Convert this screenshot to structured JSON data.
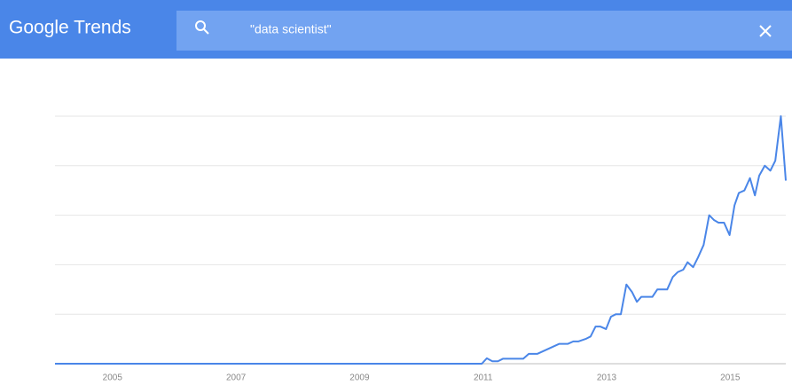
{
  "header": {
    "logo": "Google Trends",
    "search": "\"data scientist\""
  },
  "chart_data": {
    "type": "line",
    "x": [
      2004.07,
      2010.98,
      2011.06,
      2011.15,
      2011.24,
      2011.32,
      2011.65,
      2011.74,
      2011.88,
      2012.23,
      2012.37,
      2012.46,
      2012.54,
      2012.66,
      2012.74,
      2012.82,
      2012.9,
      2012.99,
      2013.07,
      2013.15,
      2013.23,
      2013.32,
      2013.41,
      2013.49,
      2013.56,
      2013.74,
      2013.82,
      2013.89,
      2013.98,
      2014.07,
      2014.15,
      2014.24,
      2014.31,
      2014.4,
      2014.48,
      2014.57,
      2014.66,
      2014.74,
      2014.81,
      2014.9,
      2014.99,
      2015.07,
      2015.14,
      2015.23,
      2015.32,
      2015.4,
      2015.47,
      2015.56,
      2015.65,
      2015.73,
      2015.82,
      2015.9
    ],
    "series": [
      {
        "color": "#4a86e8",
        "values": [
          0,
          0,
          2.2,
          1,
          1,
          2,
          2,
          4,
          4,
          8,
          8,
          9,
          9,
          10,
          11,
          15,
          15,
          14,
          19,
          20,
          20,
          32,
          29,
          25,
          27,
          27,
          30,
          30,
          30,
          35,
          37,
          38,
          41,
          39,
          43,
          48,
          60,
          58,
          57,
          57,
          52,
          64,
          69,
          70,
          75,
          68,
          76,
          80,
          78,
          82,
          100,
          74
        ]
      }
    ],
    "xlim": [
      2004.07,
      2015.9
    ],
    "xticks": [
      2005,
      2007,
      2009,
      2011,
      2013,
      2015
    ],
    "ylim": [
      0,
      100
    ],
    "yticks": [
      0,
      20,
      40,
      60,
      80,
      100
    ],
    "grid": true
  }
}
